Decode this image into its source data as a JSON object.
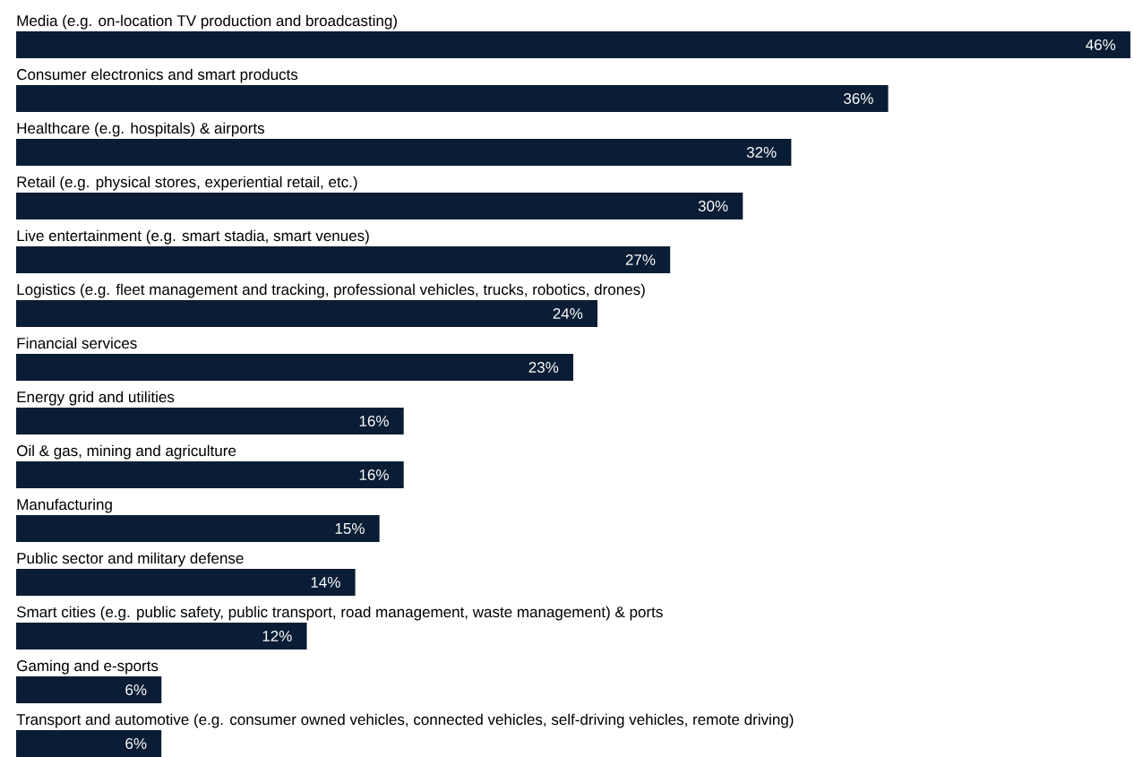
{
  "chart_data": {
    "type": "bar",
    "orientation": "horizontal",
    "color": "#0b1d35",
    "categories": [
      "Media (e.g. on-location TV production and broadcasting)",
      "Consumer electronics and smart products",
      "Healthcare (e.g. hospitals) & airports",
      "Retail (e.g. physical stores, experiential retail, etc.)",
      "Live entertainment (e.g. smart stadia, smart venues)",
      "Logistics (e.g. fleet management and tracking, professional vehicles, trucks, robotics, drones)",
      "Financial services",
      "Energy grid and utilities",
      "Oil & gas, mining and agriculture",
      "Manufacturing",
      "Public sector and military defense",
      "Smart cities (e.g. public safety, public transport, road management, waste management) & ports",
      "Gaming and e-sports",
      "Transport and automotive (e.g. consumer owned vehicles, connected vehicles, self-driving vehicles, remote driving)"
    ],
    "values": [
      46,
      36,
      32,
      30,
      27,
      24,
      23,
      16,
      16,
      15,
      14,
      12,
      6,
      6
    ],
    "value_labels": [
      "46%",
      "36%",
      "32%",
      "30%",
      "27%",
      "24%",
      "23%",
      "16%",
      "16%",
      "15%",
      "14%",
      "12%",
      "6%",
      "6%"
    ]
  }
}
